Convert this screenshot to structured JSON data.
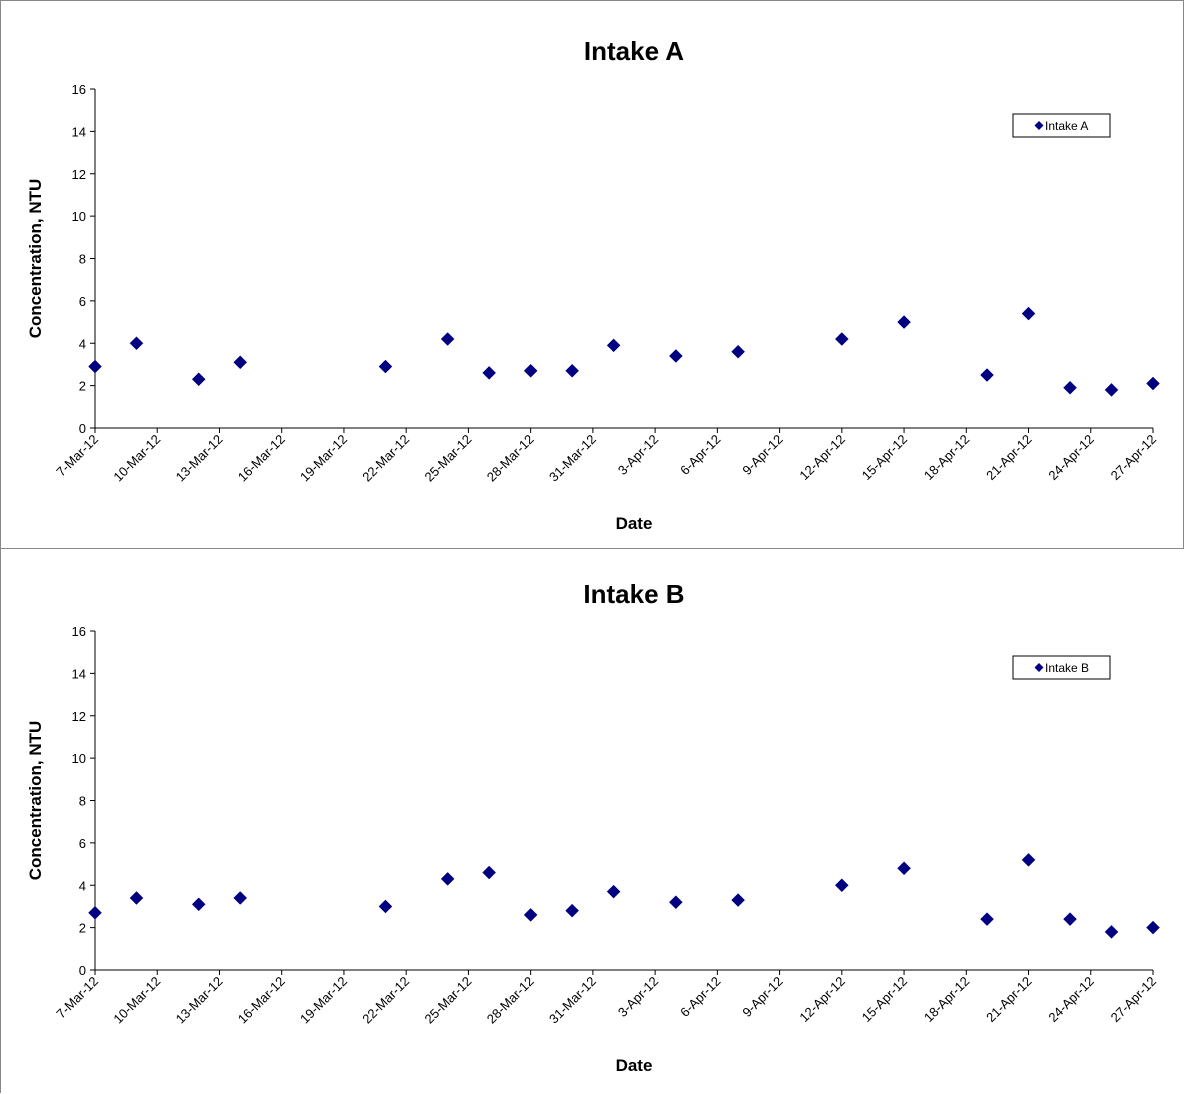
{
  "colors": {
    "marker": "#000080",
    "axis": "#000000",
    "background": "#ffffff"
  },
  "chart_data": [
    {
      "type": "scatter",
      "title": "Intake A",
      "xlabel": "Date",
      "ylabel": "Concentration, NTU",
      "ylim": [
        0,
        16
      ],
      "yticks": [
        0,
        2,
        4,
        6,
        8,
        10,
        12,
        14,
        16
      ],
      "xlim": [
        "2012-03-07",
        "2012-04-27"
      ],
      "xtick_labels": [
        "7-Mar-12",
        "10-Mar-12",
        "13-Mar-12",
        "16-Mar-12",
        "19-Mar-12",
        "22-Mar-12",
        "25-Mar-12",
        "28-Mar-12",
        "31-Mar-12",
        "3-Apr-12",
        "6-Apr-12",
        "9-Apr-12",
        "12-Apr-12",
        "15-Apr-12",
        "18-Apr-12",
        "21-Apr-12",
        "24-Apr-12",
        "27-Apr-12"
      ],
      "grid": false,
      "legend_position": "top-right",
      "series": [
        {
          "name": "Intake A",
          "marker": "diamond",
          "x": [
            "2012-03-07",
            "2012-03-09",
            "2012-03-12",
            "2012-03-14",
            "2012-03-21",
            "2012-03-24",
            "2012-03-26",
            "2012-03-28",
            "2012-03-30",
            "2012-04-01",
            "2012-04-04",
            "2012-04-07",
            "2012-04-12",
            "2012-04-15",
            "2012-04-19",
            "2012-04-21",
            "2012-04-23",
            "2012-04-25",
            "2012-04-27"
          ],
          "y": [
            2.9,
            4.0,
            2.3,
            3.1,
            2.9,
            4.2,
            2.6,
            2.7,
            2.7,
            3.9,
            3.4,
            3.6,
            4.2,
            5.0,
            2.5,
            5.4,
            1.9,
            1.8,
            2.1
          ]
        }
      ]
    },
    {
      "type": "scatter",
      "title": "Intake B",
      "xlabel": "Date",
      "ylabel": "Concentration, NTU",
      "ylim": [
        0,
        16
      ],
      "yticks": [
        0,
        2,
        4,
        6,
        8,
        10,
        12,
        14,
        16
      ],
      "xlim": [
        "2012-03-07",
        "2012-04-27"
      ],
      "xtick_labels": [
        "7-Mar-12",
        "10-Mar-12",
        "13-Mar-12",
        "16-Mar-12",
        "19-Mar-12",
        "22-Mar-12",
        "25-Mar-12",
        "28-Mar-12",
        "31-Mar-12",
        "3-Apr-12",
        "6-Apr-12",
        "9-Apr-12",
        "12-Apr-12",
        "15-Apr-12",
        "18-Apr-12",
        "21-Apr-12",
        "24-Apr-12",
        "27-Apr-12"
      ],
      "grid": false,
      "legend_position": "top-right",
      "series": [
        {
          "name": "Intake B",
          "marker": "diamond",
          "x": [
            "2012-03-07",
            "2012-03-09",
            "2012-03-12",
            "2012-03-14",
            "2012-03-21",
            "2012-03-24",
            "2012-03-26",
            "2012-03-28",
            "2012-03-30",
            "2012-04-01",
            "2012-04-04",
            "2012-04-07",
            "2012-04-12",
            "2012-04-15",
            "2012-04-19",
            "2012-04-21",
            "2012-04-23",
            "2012-04-25",
            "2012-04-27"
          ],
          "y": [
            2.7,
            3.4,
            3.1,
            3.4,
            3.0,
            4.3,
            4.6,
            2.6,
            2.8,
            3.7,
            3.2,
            3.3,
            4.0,
            4.8,
            2.4,
            5.2,
            2.4,
            1.8,
            2.0
          ]
        }
      ]
    }
  ]
}
